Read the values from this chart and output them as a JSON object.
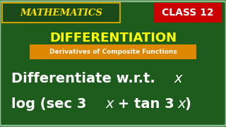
{
  "bg_color": "#1e5c1e",
  "border_color": "#8ab88a",
  "title_math": "MATHEMATICS",
  "title_math_color": "#ffdd00",
  "class_box_color": "#cc0000",
  "class_text": "CLASS 12",
  "class_text_color": "#ffffff",
  "diff_title": "DIFFERENTIATION",
  "diff_title_color": "#ffff00",
  "subtitle_bg": "#dd8800",
  "subtitle_text": "Derivatives of Composite Functions",
  "subtitle_text_color": "#ffffff",
  "line1_color": "#ffffff",
  "line2_color": "#ffffff",
  "figsize": [
    3.2,
    1.8
  ],
  "dpi": 100
}
